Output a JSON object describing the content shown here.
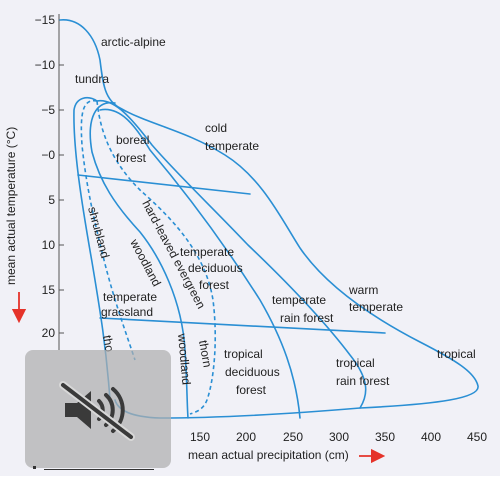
{
  "chart_data": {
    "type": "diagram",
    "ylabel": "mean actual temperature (°C)",
    "xlabel": "mean actual precipitation (cm)",
    "y_ticks": [
      "−15",
      "−10",
      "−5",
      "−0",
      "5",
      "10",
      "15",
      "20"
    ],
    "x_ticks": [
      "150",
      "200",
      "250",
      "300",
      "350",
      "400",
      "450"
    ],
    "regions": {
      "arctic_alpine": "arctic-alpine",
      "tundra": "tundra",
      "boreal_forest_1": "boreal",
      "boreal_forest_2": "forest",
      "cold_temperate_1": "cold",
      "cold_temperate_2": "temperate",
      "shrubland": "shrubland",
      "hard_leaved_evergreen": "hard-leaved evergreen",
      "woodland_upper": "woodland",
      "temperate_deciduous_1": "temperate",
      "temperate_deciduous_2": "deciduous",
      "temperate_deciduous_3": "forest",
      "temperate_grassland_1": "temperate",
      "temperate_grassland_2": "grassland",
      "temperate_rain_1": "temperate",
      "temperate_rain_2": "rain forest",
      "warm_temperate_1": "warm",
      "warm_temperate_2": "temperate",
      "tropical": "tropical",
      "tropical_deciduous_1": "tropical",
      "tropical_deciduous_2": "deciduous",
      "tropical_deciduous_3": "forest",
      "tropical_rain_1": "tropical",
      "tropical_rain_2": "rain forest",
      "woodland_lower": "woodland",
      "thorn": "thorn",
      "thorn_partial": "tho"
    },
    "colors": {
      "boundary": "#2a8fd4",
      "arrow": "#e5332a",
      "background": "#f1f1f7"
    }
  },
  "overlay": {
    "icon": "speaker-muted-icon"
  }
}
